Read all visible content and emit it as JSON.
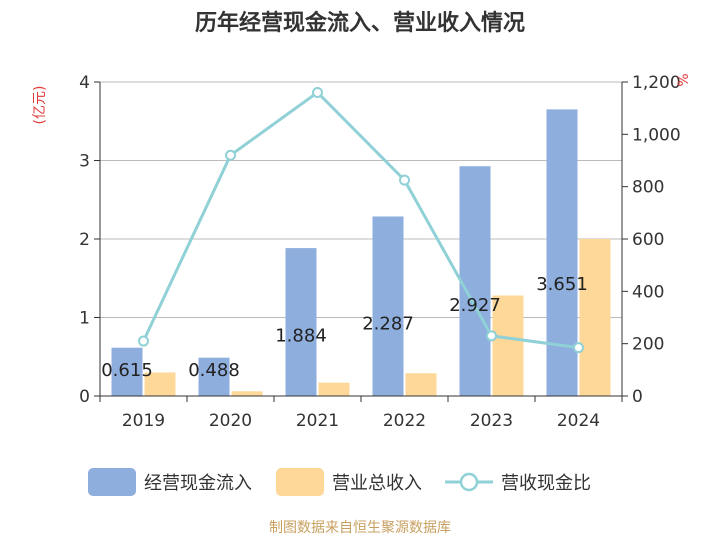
{
  "chart_data": {
    "type": "bar",
    "title": "历年经营现金流入、营业收入情况",
    "categories": [
      "2019",
      "2020",
      "2021",
      "2022",
      "2023",
      "2024"
    ],
    "y_left": {
      "unit": "(亿元)",
      "range": [
        0,
        4
      ],
      "ticks": [
        "0",
        "1",
        "2",
        "3",
        "4"
      ]
    },
    "y_right": {
      "unit": "%",
      "range": [
        0,
        1200
      ],
      "ticks": [
        "0",
        "200",
        "400",
        "600",
        "800",
        "1,000",
        "1,200"
      ]
    },
    "series": [
      {
        "name": "经营现金流入",
        "kind": "bar",
        "axis": "left",
        "color": "#8eaedd",
        "values": [
          0.615,
          0.488,
          1.884,
          2.287,
          2.927,
          3.651
        ],
        "labels": [
          "0.615",
          "0.488",
          "1.884",
          "2.287",
          "2.927",
          "3.651"
        ]
      },
      {
        "name": "营业总收入",
        "kind": "bar",
        "axis": "left",
        "color": "#fdd899",
        "values": [
          0.3,
          0.06,
          0.17,
          0.29,
          1.28,
          2.0
        ]
      },
      {
        "name": "营收现金比",
        "kind": "line",
        "axis": "right",
        "color": "#8fd1d6",
        "values": [
          210,
          920,
          1160,
          825,
          230,
          185
        ]
      }
    ],
    "grid": true,
    "legend": "bottom",
    "source": "制图数据来自恒生聚源数据库"
  }
}
